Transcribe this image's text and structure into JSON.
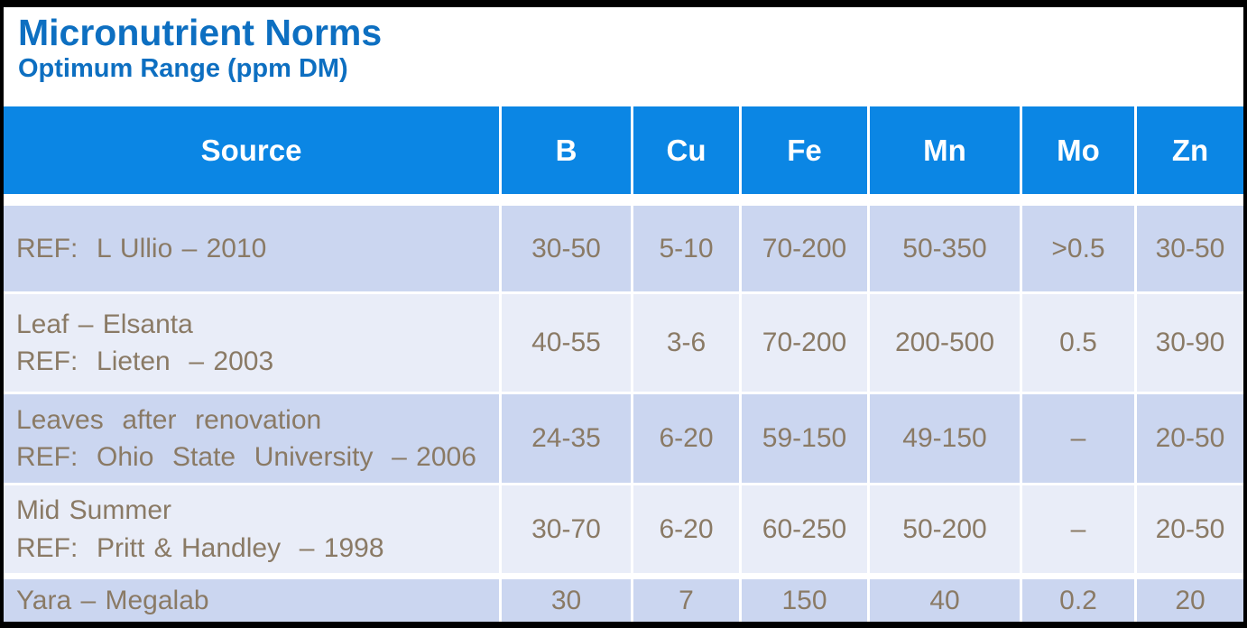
{
  "page": {
    "title": "Micronutrient Norms",
    "subtitle": "Optimum Range (ppm DM)"
  },
  "colors": {
    "title_blue": "#0d6fc1",
    "header_blue": "#0b86e4",
    "row_shade_dark": "#cbd6f0",
    "row_shade_light": "#e9edf8",
    "cell_text_brown": "#8a7a65",
    "header_text": "#ffffff",
    "frame": "#000000"
  },
  "table": {
    "columns": [
      {
        "key": "source",
        "label": "Source"
      },
      {
        "key": "b",
        "label": "B"
      },
      {
        "key": "cu",
        "label": "Cu"
      },
      {
        "key": "fe",
        "label": "Fe"
      },
      {
        "key": "mn",
        "label": "Mn"
      },
      {
        "key": "mo",
        "label": "Mo"
      },
      {
        "key": "zn",
        "label": "Zn"
      }
    ],
    "rows": [
      {
        "source_lines": [
          "REF:  L Ullio – 2010"
        ],
        "values": [
          "30-50",
          "5-10",
          "70-200",
          "50-350",
          ">0.5",
          "30-50"
        ],
        "shade": "dark"
      },
      {
        "source_lines": [
          "Leaf – Elsanta",
          "REF:  Lieten  – 2003"
        ],
        "values": [
          "40-55",
          "3-6",
          "70-200",
          "200-500",
          "0.5",
          "30-90"
        ],
        "shade": "light"
      },
      {
        "source_lines": [
          "Leaves  after  renovation",
          "REF:  Ohio  State  University  – 2006"
        ],
        "values": [
          "24-35",
          "6-20",
          "59-150",
          "49-150",
          "–",
          "20-50"
        ],
        "shade": "dark"
      },
      {
        "source_lines": [
          "Mid Summer",
          "REF:  Pritt & Handley  – 1998"
        ],
        "values": [
          "30-70",
          "6-20",
          "60-250",
          "50-200",
          "–",
          "20-50"
        ],
        "shade": "light"
      },
      {
        "source_lines": [
          "Yara – Megalab"
        ],
        "values": [
          "30",
          "7",
          "150",
          "40",
          "0.2",
          "20"
        ],
        "shade": "dark"
      }
    ]
  }
}
